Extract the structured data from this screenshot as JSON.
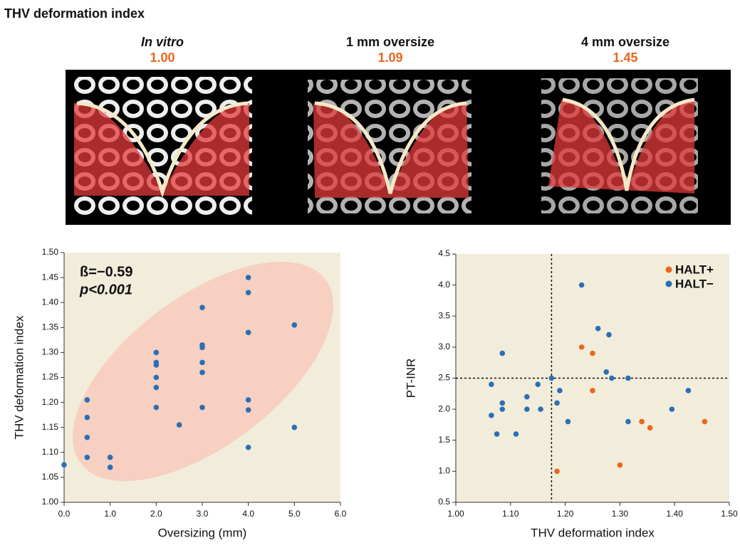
{
  "title": "THV deformation index",
  "panels": [
    {
      "label": "In vitro",
      "value": "1.00"
    },
    {
      "label": "1 mm oversize",
      "value": "1.09"
    },
    {
      "label": "4 mm oversize",
      "value": "1.45"
    }
  ],
  "chart_data": [
    {
      "type": "scatter",
      "x_label": "Oversizing (mm)",
      "y_label": "THV deformation index",
      "annotations": [
        "ß=−0.59",
        "p<0.001"
      ],
      "xlim": [
        0,
        6
      ],
      "xticks": [
        {
          "value": 0,
          "label": "0.0"
        },
        {
          "value": 1,
          "label": "1.0"
        },
        {
          "value": 2,
          "label": "2.0"
        },
        {
          "value": 3,
          "label": "3.0"
        },
        {
          "value": 4,
          "label": "4.0"
        },
        {
          "value": 5,
          "label": "5.0"
        },
        {
          "value": 6,
          "label": "6.0"
        }
      ],
      "ylim": [
        1.0,
        1.5
      ],
      "yticks": [
        {
          "value": 1.0,
          "label": "1.00"
        },
        1.05,
        {
          "value": 1.1,
          "label": "1.10"
        },
        1.15,
        {
          "value": 1.2,
          "label": "1.20"
        },
        1.25,
        {
          "value": 1.3,
          "label": "1.30"
        },
        1.35,
        {
          "value": 1.4,
          "label": "1.40"
        },
        1.45,
        {
          "value": 1.5,
          "label": "1.50"
        }
      ],
      "series": [
        {
          "color": "#2a6fb5",
          "x": [
            0,
            0.5,
            0.5,
            0.5,
            0.5,
            1,
            1,
            2,
            2,
            2,
            2,
            2,
            2,
            2.5,
            3,
            3,
            3,
            3,
            3,
            3,
            4,
            4,
            4,
            4,
            4,
            4,
            5,
            5
          ],
          "values": [
            1.075,
            1.205,
            1.17,
            1.13,
            1.09,
            1.09,
            1.07,
            1.3,
            1.28,
            1.275,
            1.25,
            1.23,
            1.19,
            1.155,
            1.39,
            1.315,
            1.31,
            1.28,
            1.26,
            1.19,
            1.45,
            1.42,
            1.34,
            1.205,
            1.185,
            1.11,
            1.355,
            1.15
          ]
        }
      ]
    },
    {
      "type": "scatter",
      "x_label": "THV deformation index",
      "y_label": "PT-INR",
      "xlim": [
        1.0,
        1.5
      ],
      "xticks": [
        {
          "value": 1.0,
          "label": "1.00"
        },
        {
          "value": 1.1,
          "label": "1.10"
        },
        {
          "value": 1.2,
          "label": "1.20"
        },
        {
          "value": 1.3,
          "label": "1.30"
        },
        {
          "value": 1.4,
          "label": "1.40"
        },
        {
          "value": 1.5,
          "label": "1.50"
        }
      ],
      "ylim": [
        0.5,
        4.5
      ],
      "yticks": [
        0.5,
        {
          "value": 1.0,
          "label": "1.0"
        },
        1.5,
        {
          "value": 2.0,
          "label": "2.0"
        },
        2.5,
        {
          "value": 3.0,
          "label": "3.0"
        },
        3.5,
        {
          "value": 4.0,
          "label": "4.0"
        },
        4.5
      ],
      "vline": 1.175,
      "hline": 2.5,
      "series": [
        {
          "name": "HALT+",
          "color": "#e8671c",
          "x": [
            1.23,
            1.25,
            1.25,
            1.185,
            1.3,
            1.34,
            1.355,
            1.455
          ],
          "values": [
            3.0,
            2.9,
            2.3,
            1.0,
            1.1,
            1.8,
            1.7,
            1.8
          ]
        },
        {
          "name": "HALT−",
          "color": "#2a6fb5",
          "x": [
            1.065,
            1.065,
            1.075,
            1.085,
            1.085,
            1.085,
            1.11,
            1.13,
            1.13,
            1.15,
            1.155,
            1.175,
            1.185,
            1.19,
            1.205,
            1.23,
            1.26,
            1.275,
            1.28,
            1.285,
            1.315,
            1.315,
            1.395,
            1.425
          ],
          "values": [
            2.4,
            1.9,
            1.6,
            2.9,
            2.1,
            2.0,
            1.6,
            2.2,
            2.0,
            2.4,
            2.0,
            2.5,
            2.1,
            2.3,
            1.8,
            4.0,
            3.3,
            2.6,
            3.2,
            2.5,
            2.5,
            1.8,
            2.0,
            2.3
          ]
        }
      ]
    }
  ]
}
